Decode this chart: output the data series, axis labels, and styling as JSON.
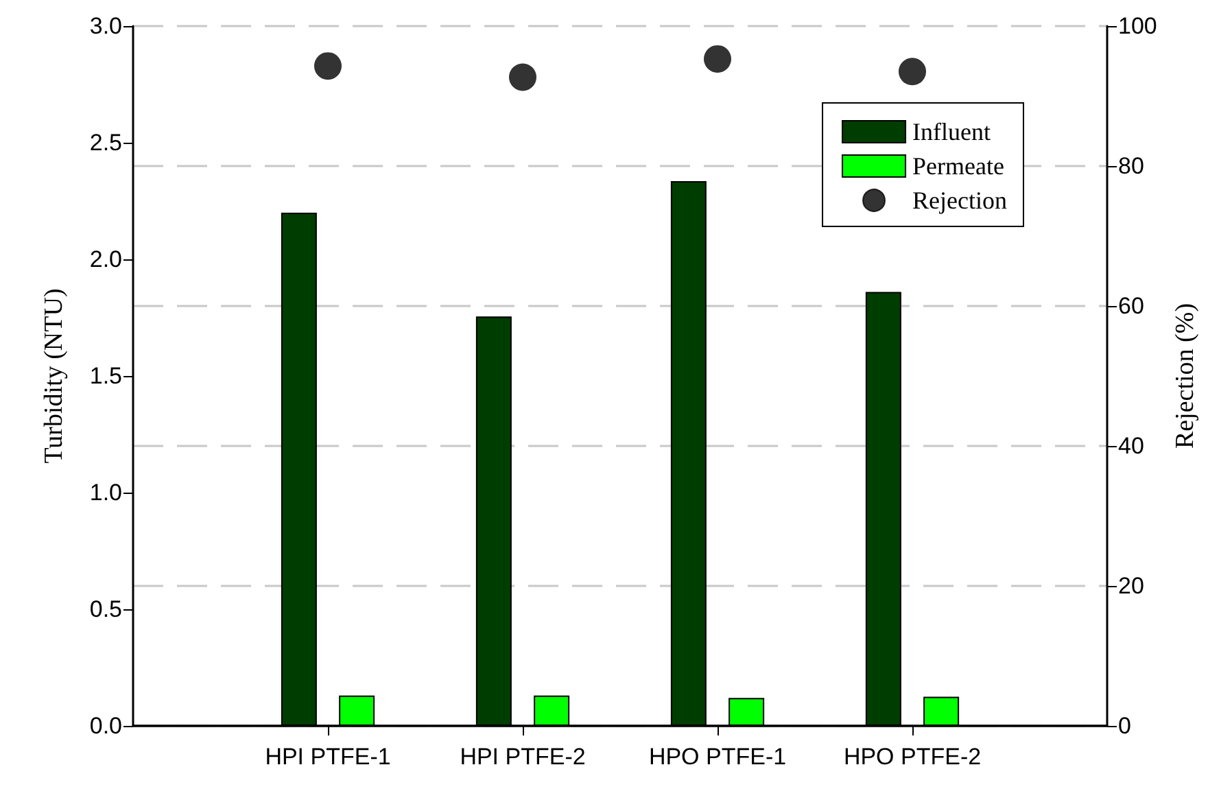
{
  "chart_data": {
    "type": "bar",
    "xlabel": null,
    "ylabel": "Turbidity (NTU)",
    "y2label": "Rejection (%)",
    "categories": [
      "HPI PTFE-1",
      "HPI PTFE-2",
      "HPO PTFE-1",
      "HPO PTFE-2"
    ],
    "series": [
      {
        "name": "Influent",
        "color": "#003d00",
        "values": [
          2.2,
          1.755,
          2.335,
          1.86
        ]
      },
      {
        "name": "Permeate",
        "color": "#00ff00",
        "values": [
          0.13,
          0.13,
          0.12,
          0.125
        ]
      },
      {
        "name": "Rejection",
        "color": "#000000",
        "type": "scatter",
        "axis": "y2",
        "marker": "circle",
        "values": [
          94.3,
          92.7,
          95.3,
          93.5
        ]
      }
    ],
    "ylim": [
      0,
      3
    ],
    "yticks": [
      {
        "value": 0,
        "label": "0.0"
      },
      0.5,
      {
        "value": 1,
        "label": "1.0"
      },
      1.5,
      {
        "value": 2,
        "label": "2.0"
      },
      2.5,
      {
        "value": 3,
        "label": "3.0"
      }
    ],
    "y2lim": [
      0,
      100
    ],
    "y2ticks": [
      0,
      20,
      40,
      60,
      80,
      100
    ],
    "grid": "y2",
    "legend": "top right"
  }
}
